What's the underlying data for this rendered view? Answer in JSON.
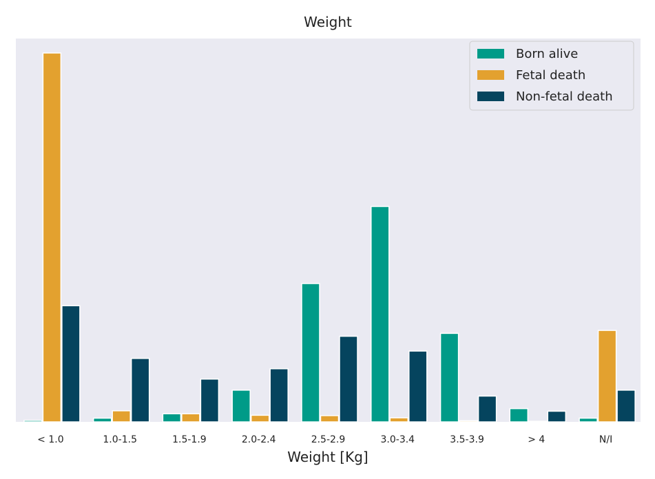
{
  "chart_data": {
    "type": "bar",
    "title": "Weight",
    "xlabel": "Weight [Kg]",
    "ylabel": "",
    "categories": [
      "< 1.0",
      "1.0-1.5",
      "1.5-1.9",
      "2.0-2.4",
      "2.5-2.9",
      "3.0-3.4",
      "3.5-3.9",
      "> 4",
      "N/I"
    ],
    "series": [
      {
        "name": "Born alive",
        "color": "#009b88",
        "values": [
          0.4,
          1.0,
          2.2,
          8.6,
          37.5,
          58.4,
          24.0,
          3.6,
          1.0
        ]
      },
      {
        "name": "Fetal death",
        "color": "#e3a12f",
        "values": [
          100,
          3.0,
          2.2,
          1.8,
          1.7,
          1.1,
          0.3,
          0.0,
          24.8
        ]
      },
      {
        "name": "Non-fetal death",
        "color": "#05445e",
        "values": [
          31.5,
          17.2,
          11.6,
          14.4,
          23.2,
          19.2,
          7.0,
          2.9,
          8.6
        ]
      }
    ],
    "ylim": [
      0,
      105
    ],
    "grid": false,
    "yticks_visible": false,
    "legend_position": "top-right",
    "background": "#eaeaf2"
  }
}
